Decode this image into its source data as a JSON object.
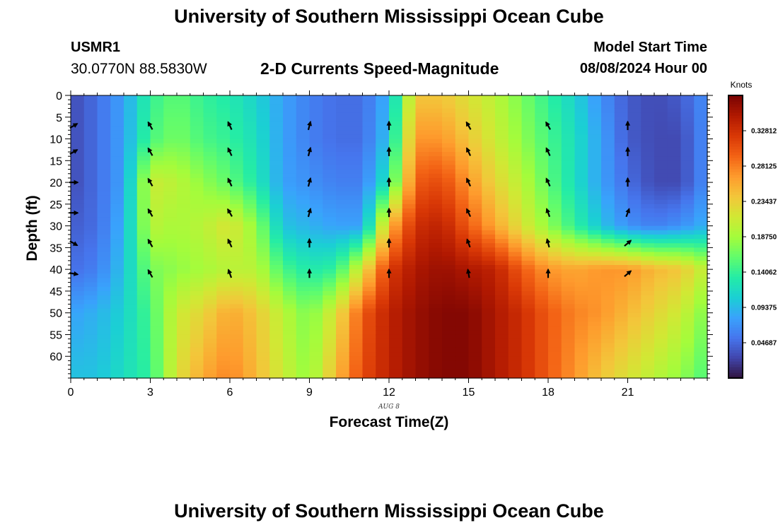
{
  "header": {
    "title": "University of Southern Mississippi Ocean Cube",
    "station_name": "USMR1",
    "station_coords": "30.0770N  88.5830W",
    "subtitle": "2-D Currents Speed-Magnitude",
    "model_start_label": "Model Start Time",
    "model_start_value": "08/08/2024 Hour 00",
    "footer_title": "University of Southern Mississippi Ocean Cube"
  },
  "chart_data": {
    "type": "heatmap",
    "title": "2-D Currents Speed-Magnitude",
    "xlabel": "Forecast Time(Z)",
    "ylabel": "Depth (ft)",
    "date_label": "AUG  8",
    "xlim": [
      0,
      24
    ],
    "ylim": [
      0,
      65
    ],
    "x_ticks": [
      0,
      3,
      6,
      9,
      12,
      15,
      18,
      21
    ],
    "y_ticks": [
      0,
      5,
      10,
      15,
      20,
      25,
      30,
      35,
      40,
      45,
      50,
      55,
      60
    ],
    "colorbar": {
      "label": "Knots",
      "min": 0,
      "max": 0.375,
      "ticks": [
        0.04687,
        0.09375,
        0.14062,
        0.1875,
        0.23437,
        0.28125,
        0.32812
      ],
      "tick_labels": [
        "0.04687",
        "0.09375",
        "0.14062",
        "0.18750",
        "0.23437",
        "0.28125",
        "0.32812"
      ]
    },
    "grid_time": [
      0,
      1,
      2,
      3,
      4,
      5,
      6,
      7,
      8,
      9,
      10,
      11,
      12,
      13,
      14,
      15,
      16,
      17,
      18,
      19,
      20,
      21,
      22,
      23,
      24
    ],
    "grid_depth": [
      0,
      10,
      20,
      30,
      40,
      50,
      65
    ],
    "speed_knots": [
      [
        0.03,
        0.05,
        0.08,
        0.14,
        0.16,
        0.14,
        0.13,
        0.11,
        0.08,
        0.06,
        0.05,
        0.05,
        0.09,
        0.24,
        0.24,
        0.22,
        0.2,
        0.17,
        0.14,
        0.11,
        0.07,
        0.04,
        0.03,
        0.04,
        0.07
      ],
      [
        0.03,
        0.05,
        0.08,
        0.15,
        0.17,
        0.15,
        0.14,
        0.12,
        0.08,
        0.06,
        0.05,
        0.05,
        0.1,
        0.27,
        0.27,
        0.24,
        0.21,
        0.18,
        0.15,
        0.12,
        0.08,
        0.04,
        0.03,
        0.03,
        0.07
      ],
      [
        0.03,
        0.05,
        0.08,
        0.21,
        0.2,
        0.18,
        0.16,
        0.13,
        0.08,
        0.07,
        0.06,
        0.06,
        0.13,
        0.3,
        0.31,
        0.27,
        0.23,
        0.2,
        0.16,
        0.12,
        0.08,
        0.05,
        0.03,
        0.03,
        0.07
      ],
      [
        0.04,
        0.05,
        0.09,
        0.2,
        0.19,
        0.2,
        0.22,
        0.18,
        0.1,
        0.09,
        0.08,
        0.08,
        0.25,
        0.33,
        0.34,
        0.3,
        0.26,
        0.22,
        0.18,
        0.14,
        0.1,
        0.07,
        0.06,
        0.07,
        0.09
      ],
      [
        0.05,
        0.06,
        0.1,
        0.17,
        0.18,
        0.19,
        0.2,
        0.2,
        0.15,
        0.13,
        0.14,
        0.22,
        0.32,
        0.35,
        0.36,
        0.35,
        0.34,
        0.3,
        0.27,
        0.26,
        0.27,
        0.27,
        0.25,
        0.24,
        0.2
      ],
      [
        0.08,
        0.09,
        0.11,
        0.15,
        0.21,
        0.23,
        0.26,
        0.24,
        0.2,
        0.17,
        0.22,
        0.3,
        0.34,
        0.36,
        0.37,
        0.37,
        0.35,
        0.33,
        0.3,
        0.28,
        0.27,
        0.25,
        0.23,
        0.21,
        0.17
      ],
      [
        0.1,
        0.1,
        0.12,
        0.14,
        0.22,
        0.26,
        0.28,
        0.25,
        0.21,
        0.18,
        0.25,
        0.31,
        0.34,
        0.36,
        0.37,
        0.37,
        0.35,
        0.33,
        0.3,
        0.27,
        0.24,
        0.22,
        0.2,
        0.18,
        0.15
      ]
    ],
    "arrows": {
      "times": [
        0,
        3,
        6,
        9,
        12,
        15,
        18,
        21
      ],
      "depths": [
        7,
        13,
        20,
        27,
        34,
        41
      ],
      "direction_deg": [
        [
          60,
          60,
          90,
          90,
          120,
          100
        ],
        [
          -30,
          -30,
          -30,
          -30,
          -30,
          -30
        ],
        [
          -25,
          -25,
          -25,
          -30,
          -25,
          -20
        ],
        [
          15,
          15,
          15,
          15,
          0,
          0
        ],
        [
          0,
          0,
          0,
          0,
          0,
          0
        ],
        [
          -30,
          -25,
          -25,
          -25,
          -20,
          -10
        ],
        [
          -30,
          -25,
          -25,
          -20,
          -15,
          0
        ],
        [
          0,
          0,
          0,
          20,
          50,
          50
        ]
      ]
    }
  },
  "style": {
    "cmap": [
      "#30123b",
      "#4145ab",
      "#4675ed",
      "#39a2fc",
      "#1bcfd4",
      "#24eca6",
      "#61fc6c",
      "#a4fc3b",
      "#d1e834",
      "#f3c63a",
      "#fe9b2d",
      "#f36315",
      "#d93806",
      "#b11901",
      "#7a0403"
    ]
  }
}
